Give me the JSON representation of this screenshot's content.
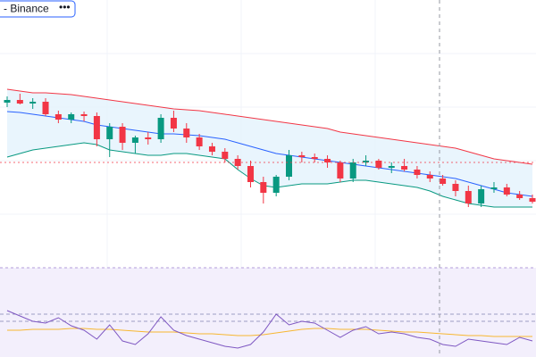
{
  "header": {
    "symbol": "- Binance",
    "menu": "•••"
  },
  "chart_data": {
    "type": "candlestick",
    "ylim": [
      102,
      400
    ],
    "candles": {
      "open": [
        285,
        288,
        284,
        286,
        272,
        266,
        272,
        270,
        244,
        258,
        240,
        246,
        244,
        268,
        256,
        246,
        236,
        230,
        222,
        214,
        196,
        184,
        202,
        226,
        224,
        222,
        218,
        200,
        218,
        220,
        212,
        214,
        210,
        204,
        200,
        194,
        186,
        172,
        188,
        190,
        182,
        178
      ],
      "high": [
        292,
        295,
        290,
        290,
        276,
        274,
        275,
        274,
        262,
        262,
        248,
        252,
        272,
        276,
        262,
        250,
        240,
        234,
        226,
        220,
        202,
        204,
        232,
        230,
        228,
        226,
        220,
        222,
        226,
        222,
        218,
        222,
        214,
        208,
        204,
        198,
        192,
        192,
        196,
        194,
        186,
        182
      ],
      "low": [
        280,
        283,
        278,
        270,
        262,
        262,
        264,
        236,
        224,
        232,
        228,
        238,
        240,
        252,
        240,
        232,
        226,
        218,
        210,
        190,
        172,
        180,
        198,
        218,
        218,
        212,
        196,
        196,
        214,
        210,
        206,
        208,
        200,
        196,
        192,
        180,
        168,
        168,
        184,
        180,
        176,
        172
      ],
      "close": [
        288,
        284,
        286,
        272,
        266,
        272,
        270,
        244,
        258,
        240,
        246,
        244,
        268,
        256,
        246,
        236,
        230,
        222,
        214,
        196,
        184,
        202,
        226,
        224,
        222,
        218,
        200,
        218,
        220,
        212,
        214,
        210,
        204,
        200,
        194,
        186,
        172,
        188,
        190,
        182,
        178,
        174
      ]
    },
    "up_color": "#089981",
    "down_color": "#f23645",
    "bands": [
      {
        "color": "#f23645",
        "values": [
          300,
          298,
          296,
          296,
          295,
          294,
          292,
          290,
          288,
          286,
          284,
          282,
          280,
          278,
          277,
          276,
          274,
          272,
          270,
          268,
          266,
          264,
          262,
          260,
          258,
          256,
          252,
          250,
          248,
          246,
          244,
          242,
          240,
          238,
          236,
          234,
          230,
          226,
          222,
          220,
          218,
          216
        ]
      },
      {
        "color": "#2962ff",
        "values": [
          275,
          274,
          272,
          270,
          268,
          266,
          264,
          260,
          258,
          256,
          254,
          252,
          250,
          250,
          249,
          248,
          246,
          244,
          240,
          236,
          232,
          228,
          226,
          224,
          222,
          220,
          218,
          216,
          214,
          212,
          210,
          208,
          206,
          204,
          202,
          200,
          196,
          192,
          188,
          184,
          182,
          180
        ]
      },
      {
        "color": "#089981",
        "values": [
          224,
          228,
          232,
          234,
          236,
          238,
          240,
          238,
          232,
          230,
          228,
          226,
          226,
          228,
          228,
          226,
          224,
          222,
          210,
          200,
          192,
          190,
          192,
          194,
          194,
          194,
          196,
          198,
          198,
          196,
          194,
          192,
          190,
          186,
          180,
          176,
          172,
          170,
          168,
          168,
          168,
          168
        ]
      }
    ],
    "band_fill": "#e3f2fd",
    "rsi": {
      "ylim": [
        0,
        100
      ],
      "levels": [
        48,
        40
      ],
      "color": "#7e57c2",
      "ma_color": "#f7b731",
      "values": [
        52,
        46,
        40,
        38,
        44,
        35,
        30,
        20,
        36,
        18,
        14,
        26,
        45,
        30,
        24,
        20,
        16,
        12,
        10,
        14,
        28,
        48,
        36,
        40,
        38,
        30,
        22,
        30,
        34,
        26,
        28,
        26,
        22,
        20,
        14,
        12,
        20,
        18,
        16,
        14,
        22,
        18
      ],
      "ma": [
        30,
        30,
        31,
        31,
        31,
        32,
        32,
        31,
        31,
        30,
        29,
        28,
        28,
        28,
        27,
        26,
        26,
        25,
        24,
        24,
        25,
        27,
        29,
        31,
        32,
        32,
        31,
        31,
        31,
        30,
        29,
        28,
        28,
        27,
        26,
        25,
        24,
        24,
        23,
        23,
        23,
        23
      ]
    }
  }
}
